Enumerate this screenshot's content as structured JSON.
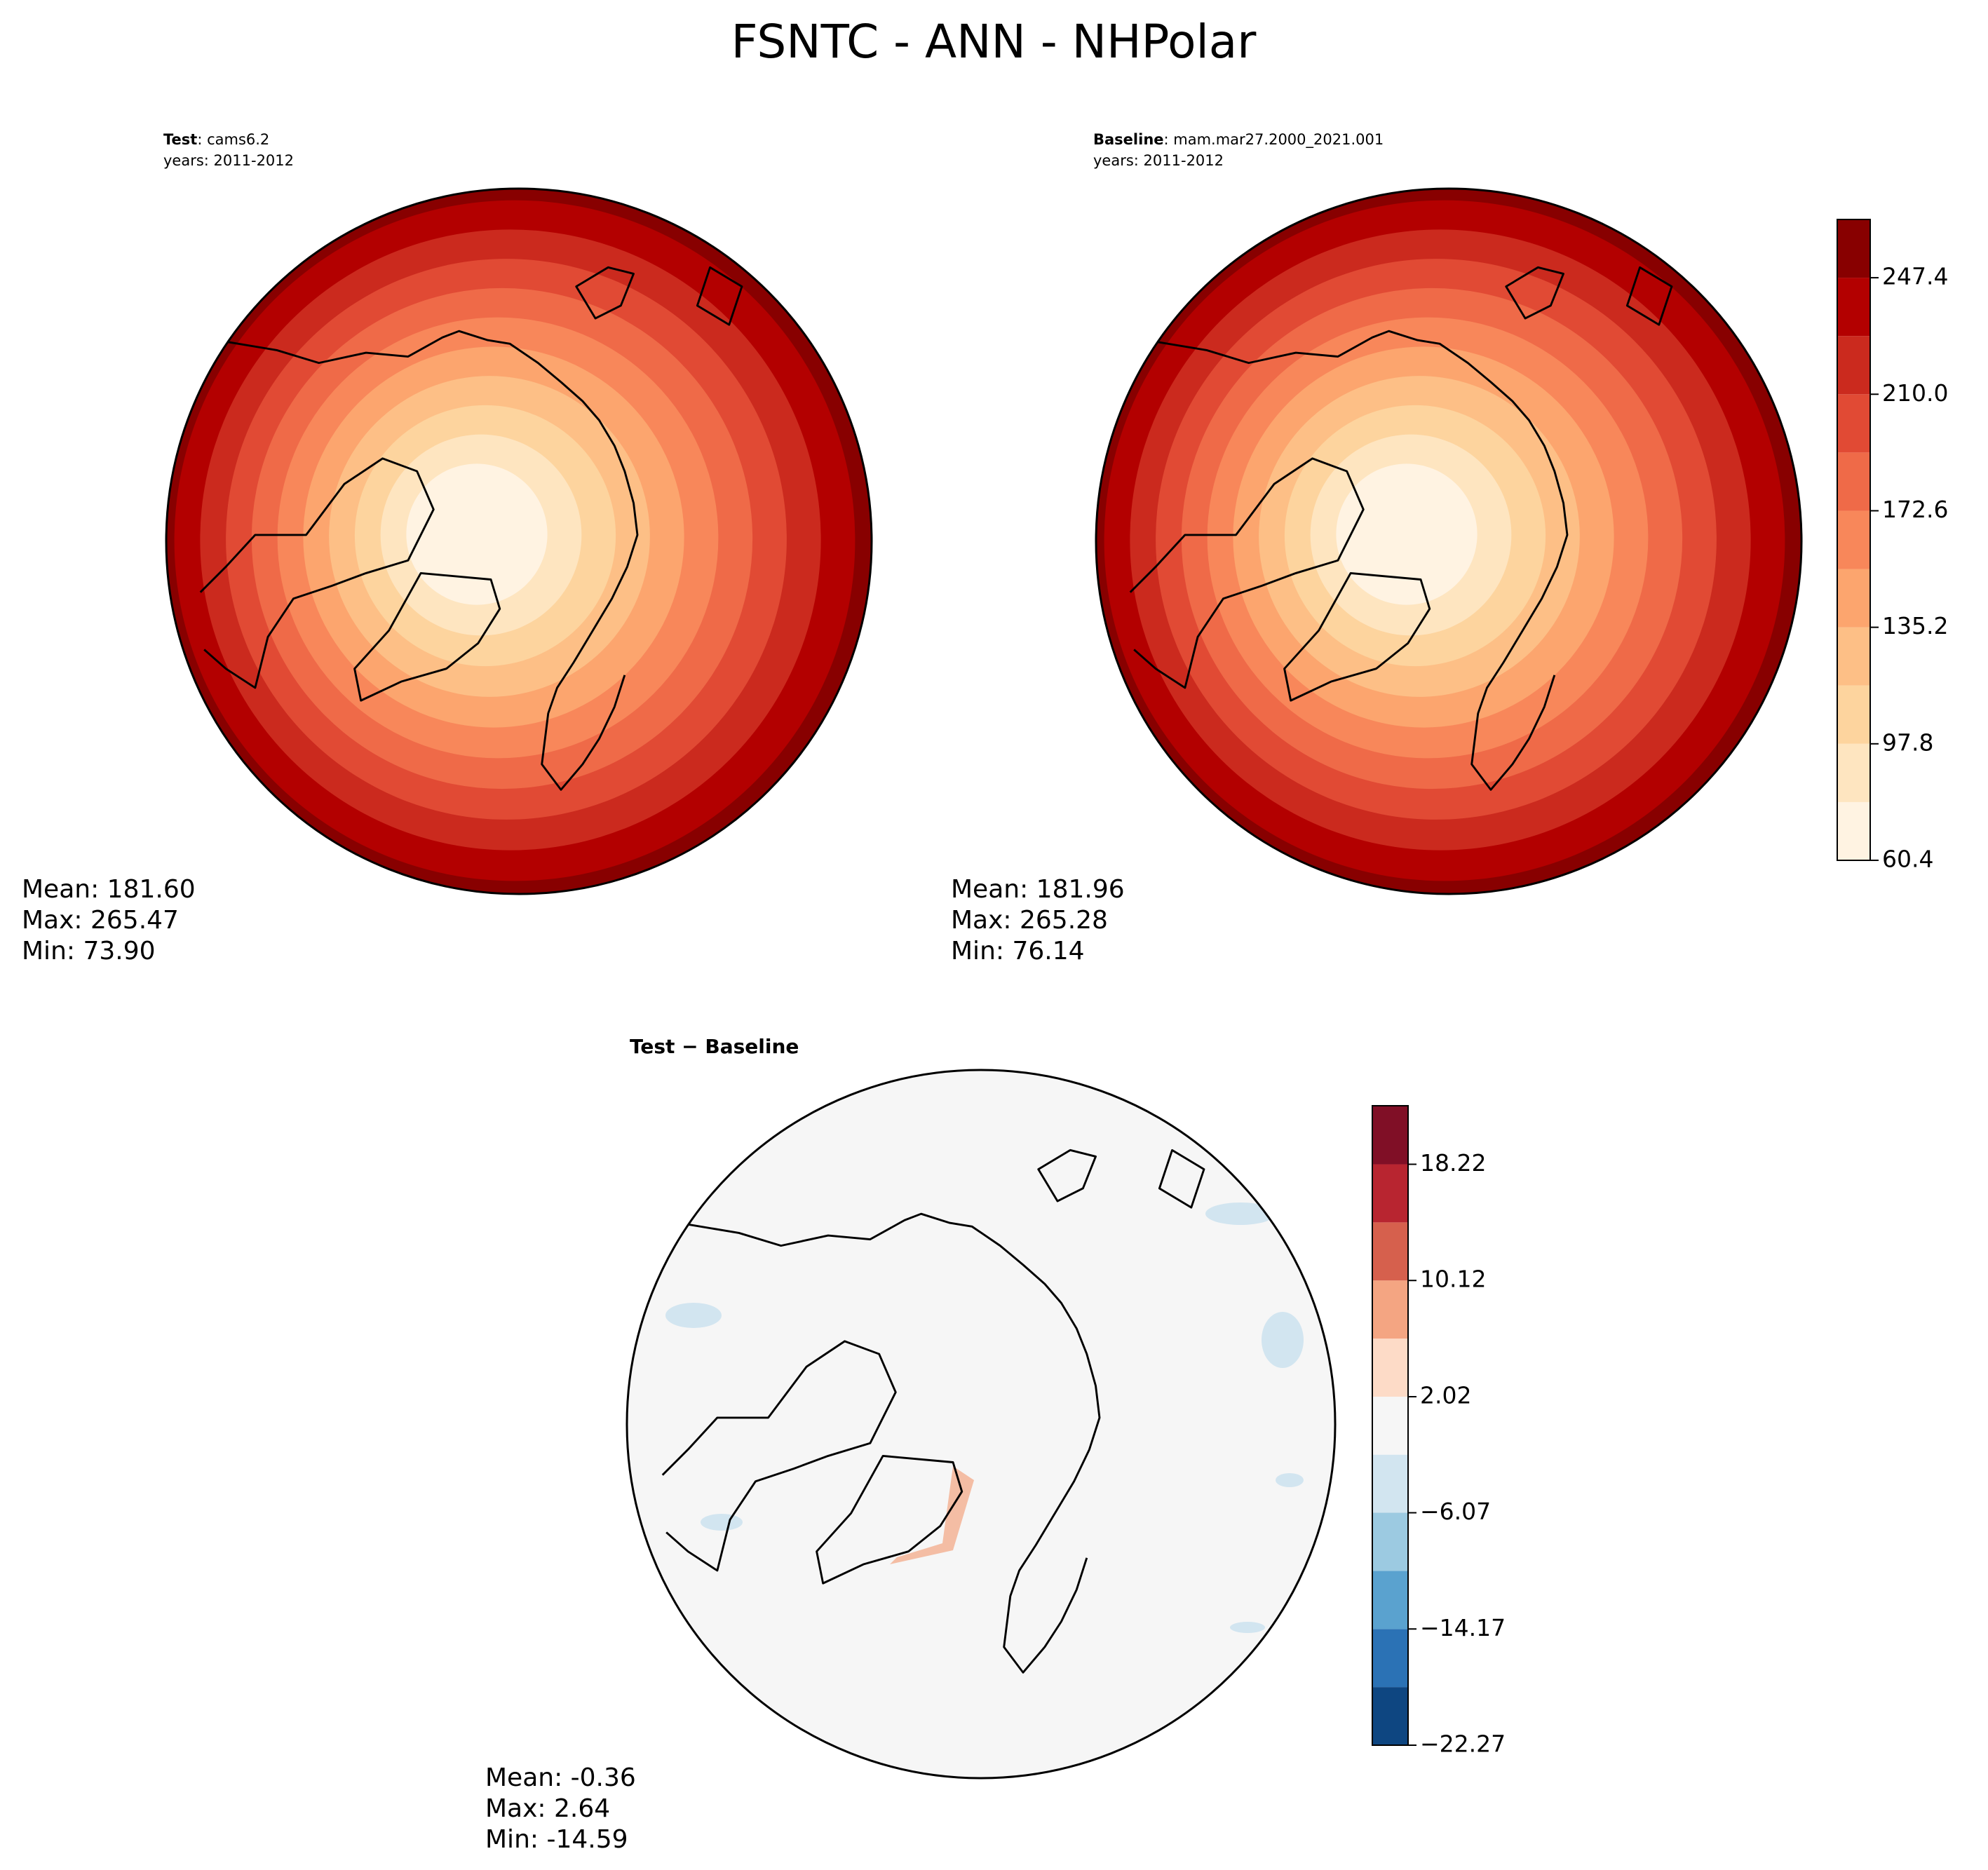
{
  "title": "FSNTC - ANN - NHPolar",
  "chart_data": [
    {
      "type": "map",
      "label": "Test",
      "text": ": cams6.2",
      "years": "years: 2011-2012",
      "stats": [
        "Mean: 181.60",
        "Max: 265.47",
        "Min: 73.90"
      ]
    },
    {
      "type": "map",
      "label": "Baseline",
      "text": ": mam.mar27.2000_2021.001",
      "years": "years: 2011-2012",
      "stats": [
        "Mean: 181.96",
        "Max: 265.28",
        "Min: 76.14"
      ],
      "colorbar": {
        "levels": [
          60.4,
          79.1,
          97.8,
          116.5,
          135.2,
          153.9,
          172.6,
          191.3,
          210.0,
          228.7,
          247.4,
          266.1
        ],
        "colors": [
          "#fff3e2",
          "#fee5c0",
          "#fdd49e",
          "#fdbf86",
          "#fca56e",
          "#f8875a",
          "#ef6a48",
          "#e14a34",
          "#cb2a1e",
          "#b30000",
          "#880000"
        ],
        "ylim": [
          60.4,
          266.1
        ],
        "yticks": [
          60.4,
          97.8,
          135.2,
          172.6,
          {
            "value": 210,
            "label": "210.0"
          },
          247.4
        ]
      }
    },
    {
      "type": "map-diff",
      "title": "Test − Baseline",
      "stats": [
        "Mean: -0.36",
        "Max:  2.64",
        "Min: -14.59"
      ],
      "colorbar": {
        "levels": [
          -22.27,
          -18.22,
          -14.17,
          -10.12,
          -6.07,
          -2.02,
          2.02,
          6.07,
          10.12,
          14.17,
          18.22,
          22.3
        ],
        "colors": [
          "#0e4681",
          "#2b72b5",
          "#5aa2cf",
          "#9ccae1",
          "#d2e5f0",
          "#f6f6f6",
          "#fddbc7",
          "#f4a582",
          "#d6604d",
          "#b82530",
          "#800f26"
        ],
        "ylim": [
          -22.27,
          22.3
        ],
        "yticks": [
          {
            "value": -22.27,
            "label": "−22.27"
          },
          {
            "value": -14.17,
            "label": "−14.17"
          },
          {
            "value": -6.07,
            "label": "−6.07"
          },
          2.02,
          10.12,
          18.22
        ]
      }
    }
  ]
}
